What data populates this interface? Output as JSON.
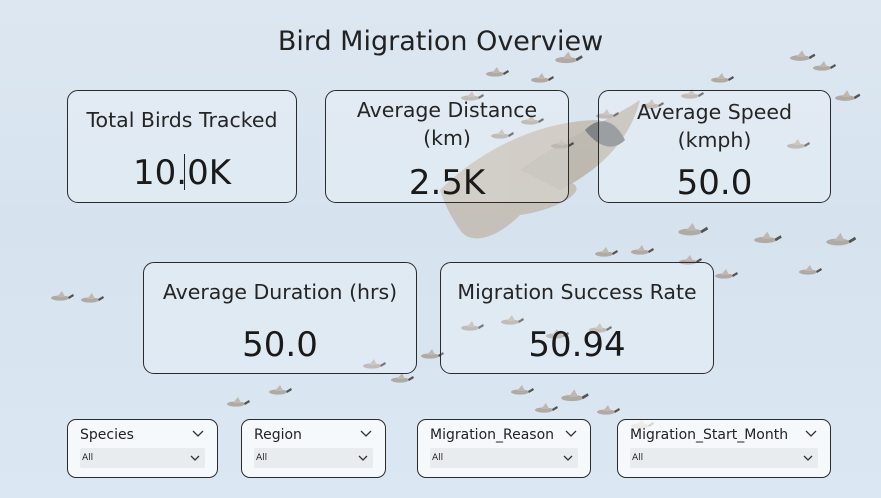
{
  "report": {
    "title": "Bird Migration Overview"
  },
  "cards": [
    {
      "label": "Total Birds Tracked",
      "value": "10.0K"
    },
    {
      "label": "Average Distance (km)",
      "value": "2.5K"
    },
    {
      "label": "Average Speed (kmph)",
      "value": "50.0"
    },
    {
      "label": "Average Duration (hrs)",
      "value": "50.0"
    },
    {
      "label": "Migration Success Rate",
      "value": "50.94"
    }
  ],
  "slicers": [
    {
      "title": "Species",
      "selected": "All"
    },
    {
      "title": "Region",
      "selected": "All"
    },
    {
      "title": "Migration_Reason",
      "selected": "All"
    },
    {
      "title": "Migration_Start_Month",
      "selected": "All"
    }
  ],
  "background": {
    "image": "flying-geese-icon",
    "sky_color": "#d6e3ef",
    "bird_color": "#b5a89a"
  },
  "icons": {
    "chevron": "chevron-down-icon"
  }
}
